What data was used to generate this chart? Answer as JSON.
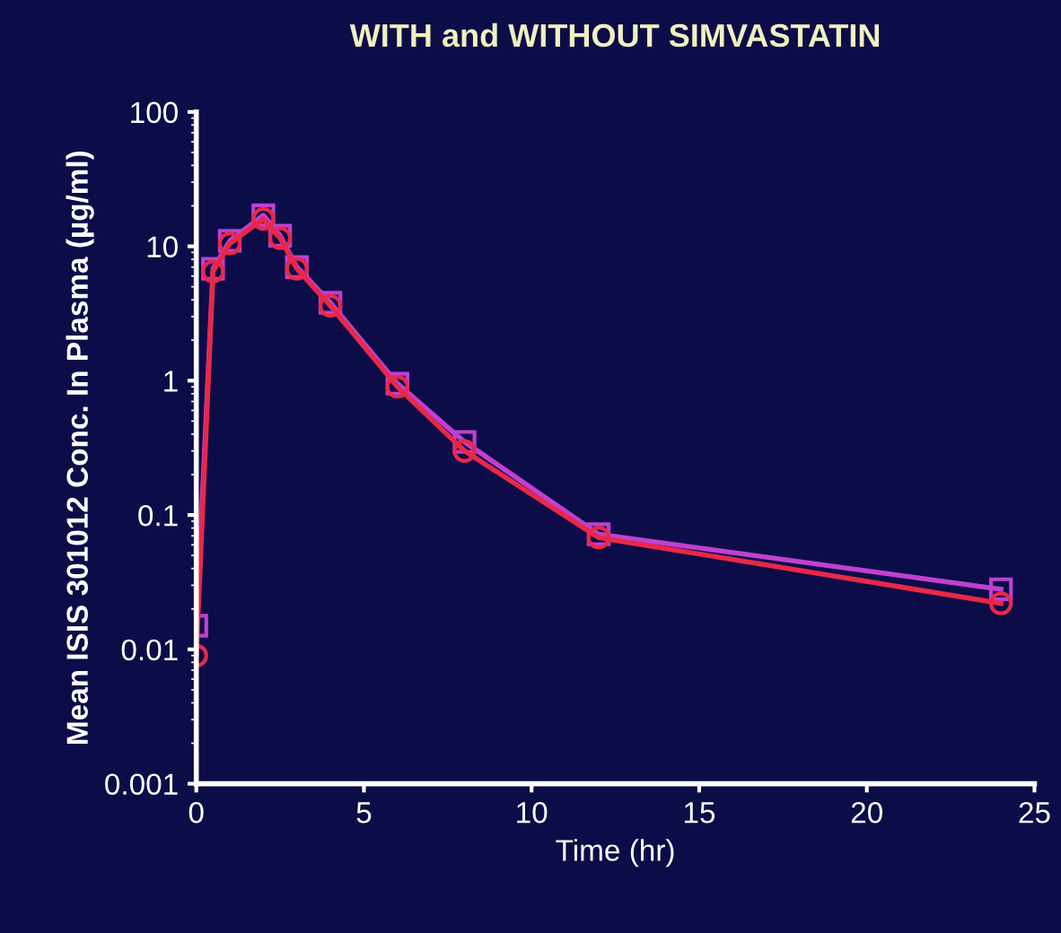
{
  "chart_data": {
    "type": "line",
    "title": "WITH and WITHOUT SIMVASTATIN",
    "xlabel": "Time (hr)",
    "ylabel": "Mean ISIS 301012 Conc. In Plasma (µg/ml)",
    "x": [
      0,
      0.5,
      1,
      2,
      2.5,
      3,
      4,
      6,
      8,
      12,
      24
    ],
    "series": [
      {
        "color": "#c040d0",
        "marker": "square",
        "values": [
          0.015,
          6.8,
          11,
          17,
          12,
          7,
          3.8,
          0.95,
          0.35,
          0.072,
          0.028
        ]
      },
      {
        "color": "#e82848",
        "marker": "circle",
        "values": [
          0.009,
          6.5,
          10.5,
          16,
          11.5,
          6.8,
          3.6,
          0.9,
          0.3,
          0.068,
          0.022
        ]
      }
    ],
    "log": "y",
    "xlim": [
      0,
      25
    ],
    "xticks": [
      0,
      5,
      10,
      15,
      20,
      25
    ],
    "ylim": [
      0.001,
      100
    ],
    "yticks": [
      0.001,
      0.01,
      0.1,
      1,
      10,
      100
    ],
    "grid": false,
    "legend": false
  }
}
